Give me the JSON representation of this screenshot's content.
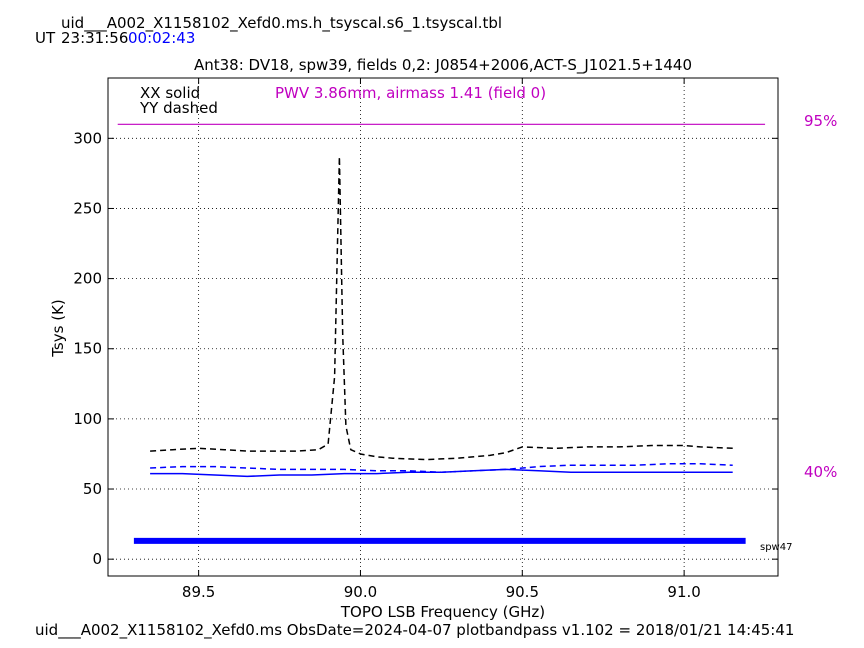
{
  "header": {
    "filename": "uid___A002_X1158102_Xefd0.ms.h_tsyscal.s6_1.tsyscal.tbl",
    "ut_label": "UT",
    "ut_time": "23:31:56",
    "ut_duration": "00:02:43",
    "ut_duration_color": "#0000ff"
  },
  "footer": {
    "text": "uid___A002_X1158102_Xefd0.ms  ObsDate=2024-04-07   plotbandpass v1.102 = 2018/01/21 14:45:41"
  },
  "chart_data": {
    "type": "line",
    "title": "Ant38: DV18,  spw39,  fields 0,2: J0854+2006,ACT-S_J1021.5+1440",
    "xlabel": "TOPO LSB Frequency (GHz)",
    "ylabel": "Tsys (K)",
    "xlim": [
      89.22,
      91.29
    ],
    "ylim": [
      -12,
      343
    ],
    "xticks": [
      89.5,
      90.0,
      90.5,
      91.0
    ],
    "xtick_labels": [
      "89.5",
      "90.0",
      "90.5",
      "91.0"
    ],
    "yticks": [
      0,
      50,
      100,
      150,
      200,
      250,
      300
    ],
    "ytick_labels": [
      "0",
      "50",
      "100",
      "150",
      "200",
      "250",
      "300"
    ],
    "grid": true,
    "legend": {
      "xx": "XX solid",
      "yy": "YY dashed",
      "pwv": "PWV 3.86mm, airmass 1.41 (field 0)",
      "pwv_color": "#c000c0"
    },
    "right_labels": [
      {
        "text": "95%",
        "color": "#c000c0"
      },
      {
        "text": "40%",
        "color": "#c000c0"
      }
    ],
    "spw_label": "spw47",
    "series": [
      {
        "id": "black-yy",
        "color": "#000000",
        "dash": true,
        "x": [
          89.35,
          89.42,
          89.5,
          89.58,
          89.65,
          89.72,
          89.8,
          89.87,
          89.9,
          89.92,
          89.935,
          89.945,
          89.955,
          89.97,
          90.0,
          90.05,
          90.1,
          90.2,
          90.3,
          90.4,
          90.45,
          90.5,
          90.6,
          90.7,
          90.8,
          90.9,
          91.0,
          91.05,
          91.15
        ],
        "y": [
          77,
          78,
          79,
          78,
          77,
          77,
          77,
          78,
          82,
          130,
          287,
          160,
          95,
          78,
          75,
          73,
          72,
          71,
          72,
          74,
          76,
          80,
          79,
          80,
          80,
          81,
          81,
          80,
          79
        ]
      },
      {
        "id": "blue-yy",
        "color": "#0000ff",
        "dash": true,
        "x": [
          89.35,
          89.45,
          89.55,
          89.65,
          89.75,
          89.85,
          89.95,
          90.05,
          90.15,
          90.25,
          90.35,
          90.45,
          90.55,
          90.65,
          90.75,
          90.85,
          90.95,
          91.05,
          91.15
        ],
        "y": [
          65,
          66,
          66,
          65,
          64,
          64,
          64,
          63,
          63,
          62,
          63,
          64,
          66,
          67,
          67,
          67,
          68,
          68,
          67
        ]
      },
      {
        "id": "blue-xx",
        "color": "#0000ff",
        "dash": false,
        "x": [
          89.35,
          89.45,
          89.55,
          89.65,
          89.75,
          89.85,
          89.95,
          90.05,
          90.15,
          90.25,
          90.35,
          90.45,
          90.55,
          90.65,
          90.75,
          90.85,
          90.95,
          91.05,
          91.15
        ],
        "y": [
          61,
          61,
          60,
          59,
          60,
          60,
          61,
          61,
          62,
          62,
          63,
          64,
          63,
          62,
          62,
          62,
          62,
          62,
          62
        ]
      }
    ],
    "pwv_line": {
      "y": 310,
      "x0": 89.25,
      "x1": 91.25,
      "color": "#c000c0"
    },
    "spw_bar": {
      "y": 13,
      "x0": 89.3,
      "x1": 91.19,
      "color": "#0000ff"
    }
  }
}
